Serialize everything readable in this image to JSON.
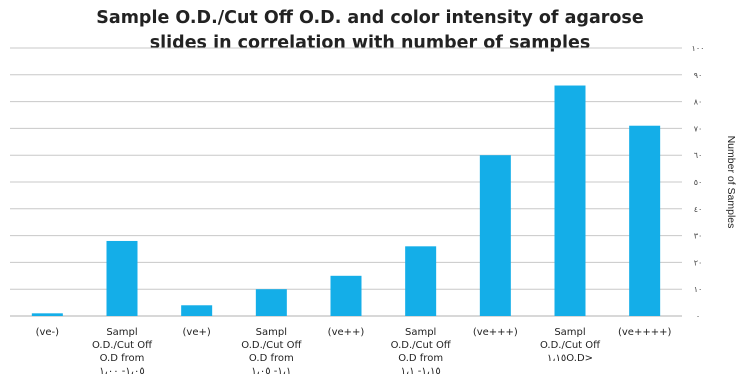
{
  "chart_data": {
    "type": "bar",
    "title": [
      "Sample O.D./Cut Off O.D. and color intensity of agarose",
      "slides in correlation with number of samples"
    ],
    "xlabel": "",
    "ylabel": "Number of Samples",
    "ylim": [
      0,
      100
    ],
    "y_tick_labels": [
      "٠",
      "١٠",
      "٢٠",
      "٣٠",
      "٤٠",
      "٥٠",
      "٦٠",
      "٧٠",
      "٨٠",
      "٩٠",
      "١٠٠"
    ],
    "y_axis_side": "right",
    "grid": true,
    "color": "#14aee8",
    "categories": [
      [
        "(ve-)"
      ],
      [
        "Sampl",
        "O.D./Cut Off",
        "O.D from",
        "١،٠٥- ١،٠٠"
      ],
      [
        "(ve+)"
      ],
      [
        "Sampl",
        "O.D./Cut Off",
        "O.D from",
        "١،١- ١،٠٥"
      ],
      [
        "(ve++)"
      ],
      [
        "Sampl",
        "O.D./Cut Off",
        "O.D from",
        "١،١٥- ١،١"
      ],
      [
        "(ve+++)"
      ],
      [
        "Sampl",
        "O.D./Cut Off",
        "١،١٥O.D>"
      ],
      [
        "(ve++++)"
      ]
    ],
    "values": [
      1,
      28,
      4,
      10,
      15,
      26,
      60,
      86,
      71
    ]
  }
}
